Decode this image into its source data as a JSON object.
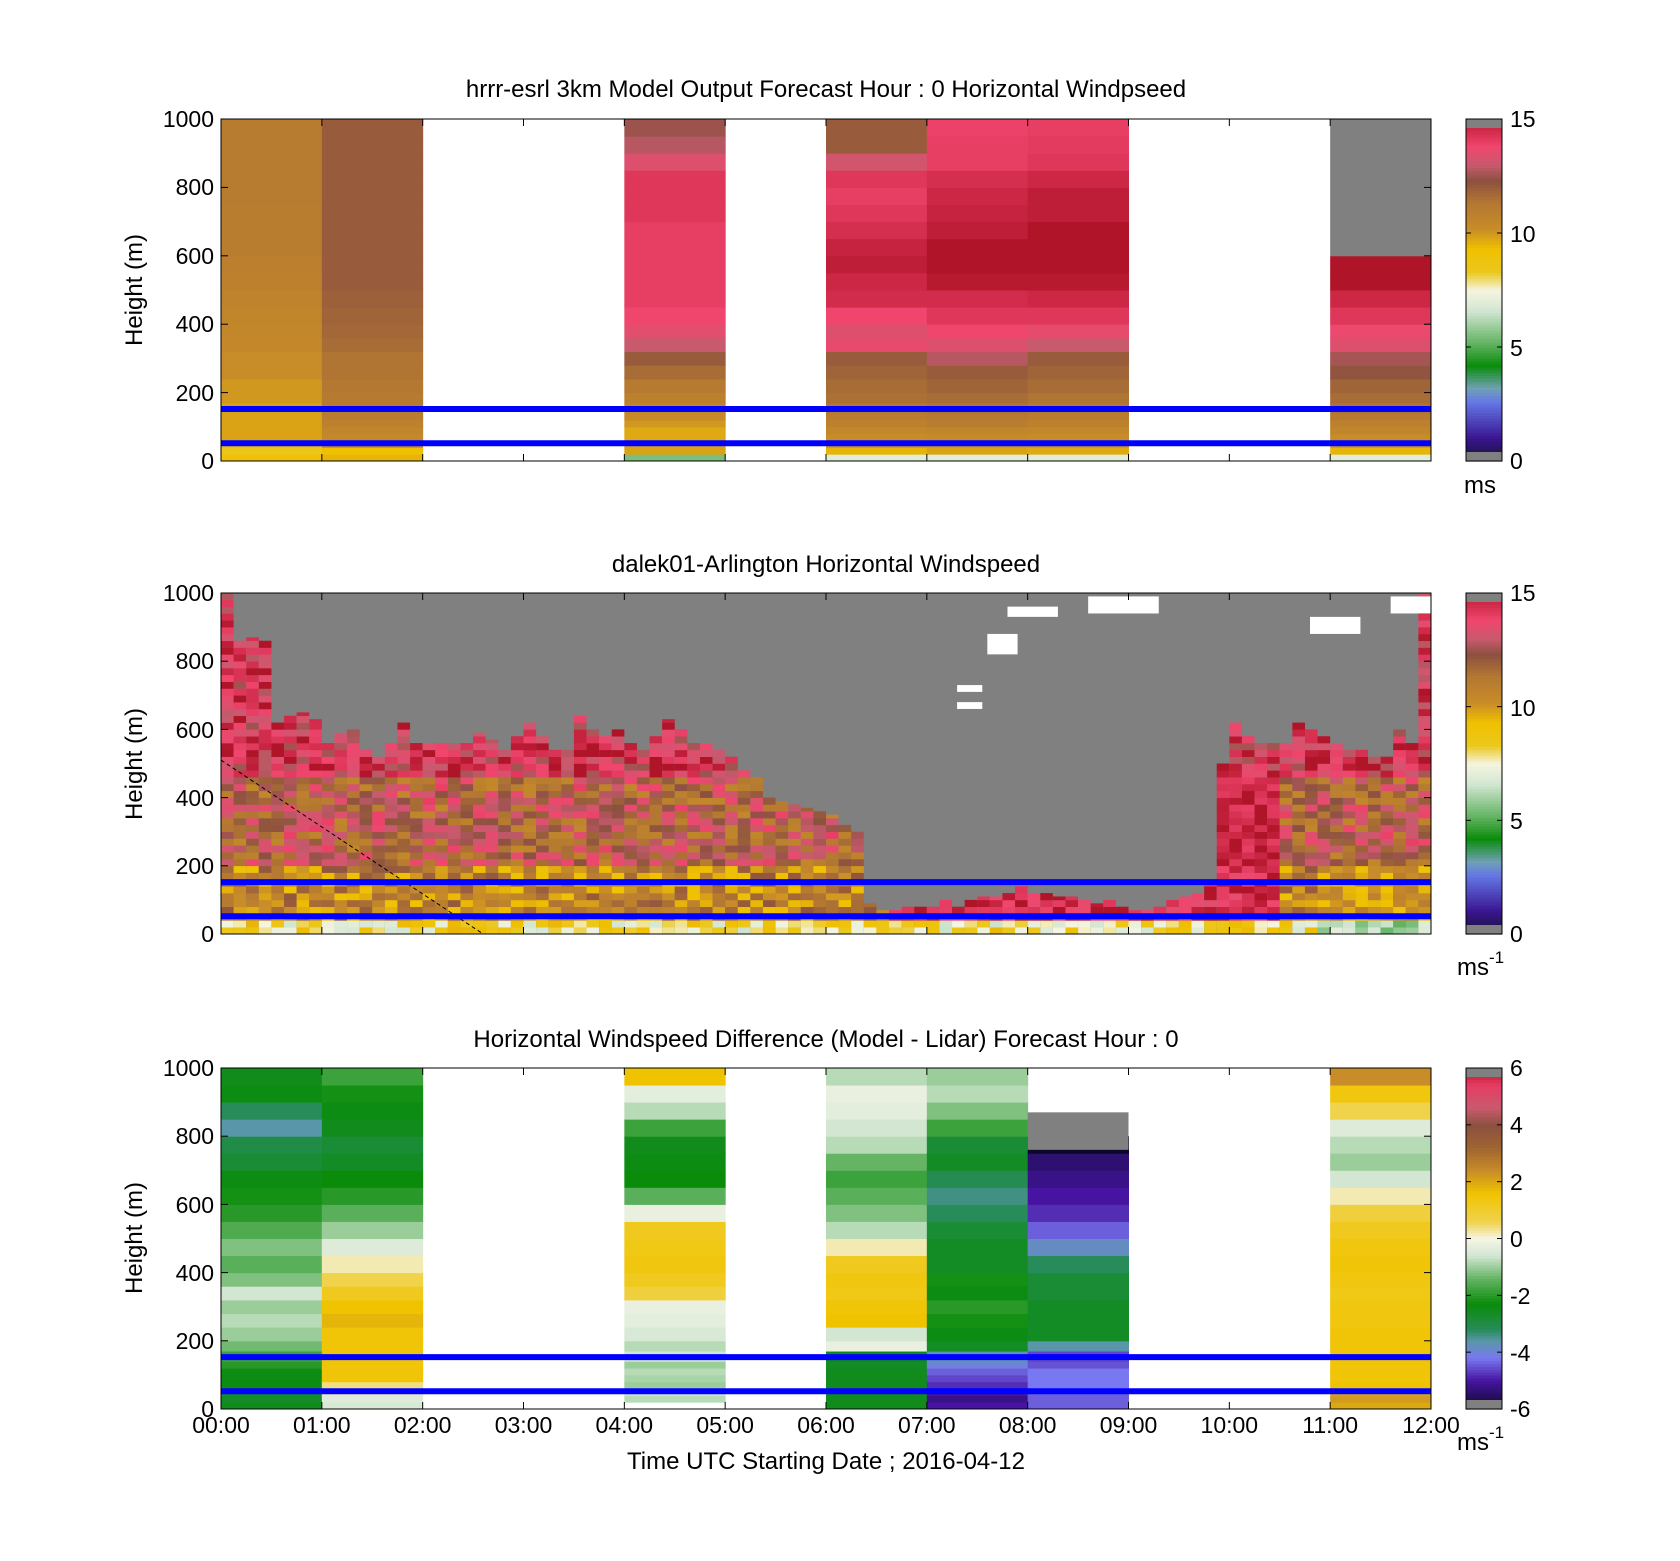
{
  "chart_data": [
    {
      "type": "heatmap",
      "title": "hrrr-esrl 3km Model Output   Forecast Hour : 0 Horizontal Windpseed",
      "ylabel": "Height (m)",
      "xlabel": "",
      "x_unit": "hours UTC",
      "ylim": [
        0,
        1000
      ],
      "yticks": [
        "0",
        "200",
        "400",
        "600",
        "800",
        "1000"
      ],
      "colorbar": {
        "min": 0,
        "max": 15,
        "ticks": [
          "0",
          "5",
          "10",
          "15"
        ],
        "unit_label": "ms",
        "unit_exp": ""
      },
      "reference_lines_m": [
        52,
        152
      ],
      "height_bins_m": [
        0,
        20,
        40,
        60,
        80,
        100,
        120,
        140,
        170,
        200,
        240,
        280,
        320,
        360,
        400,
        450,
        500,
        550,
        600,
        650,
        700,
        750,
        800,
        850,
        900,
        950,
        1000
      ],
      "columns": [
        {
          "t0": 0,
          "t1": 1,
          "values": [
            9,
            8.5,
            9.3,
            9.8,
            9.8,
            9.8,
            9.8,
            9.8,
            10,
            10,
            10.2,
            10.2,
            10.4,
            10.5,
            10.6,
            10.7,
            10.8,
            10.9,
            11,
            11,
            11,
            11.1,
            11.1,
            11.1,
            11.1,
            11.1
          ]
        },
        {
          "t0": 1,
          "t1": 2,
          "values": [
            9.5,
            9.3,
            10.2,
            10.4,
            10.6,
            10.8,
            11,
            11.1,
            11.2,
            11.3,
            11.4,
            11.4,
            11.6,
            11.7,
            11.8,
            11.9,
            12,
            12,
            12,
            12,
            12,
            12,
            12,
            12,
            12,
            12
          ]
        },
        {
          "t0": 4,
          "t1": 5,
          "values": [
            5.5,
            9.8,
            9.8,
            9.7,
            9.7,
            10,
            10.3,
            10.5,
            10.8,
            11.2,
            11.6,
            12,
            13,
            13.5,
            13.8,
            14,
            14,
            14,
            14,
            14,
            14.2,
            14.2,
            14.2,
            13.4,
            12.8,
            12.5
          ]
        },
        {
          "t0": 6,
          "t1": 7,
          "values": [
            7,
            9.5,
            10,
            10.2,
            10.5,
            10.8,
            11,
            11.3,
            11.5,
            11.6,
            11.8,
            12,
            13.6,
            13.4,
            13.8,
            14.5,
            14.6,
            14.8,
            14.7,
            14.4,
            14.2,
            14,
            14.2,
            13.2,
            12,
            12
          ]
        },
        {
          "t0": 7,
          "t1": 8,
          "values": [
            7,
            9.8,
            10,
            10.3,
            10.6,
            11,
            11.2,
            11.4,
            11.6,
            11.8,
            12,
            12.8,
            13.4,
            13.8,
            14.2,
            14.5,
            14.9,
            15,
            15,
            14.8,
            14.7,
            14.6,
            14.4,
            14,
            14,
            13.9
          ]
        },
        {
          "t0": 8,
          "t1": 9,
          "values": [
            7,
            9.7,
            10,
            10.2,
            10.5,
            10.8,
            11,
            11.2,
            11.4,
            11.6,
            11.8,
            12,
            13,
            13.6,
            14.2,
            14.6,
            14.9,
            15,
            15,
            15,
            14.8,
            14.8,
            14.6,
            14.2,
            14.1,
            14
          ]
        },
        {
          "t0": 11,
          "t1": 12,
          "values": [
            7,
            9.5,
            10,
            10.2,
            10.6,
            10.8,
            11.2,
            11.4,
            11.6,
            11.8,
            12.2,
            12.6,
            13.4,
            13.7,
            14.2,
            14.6,
            15,
            15,
            15.5,
            15.5,
            15.5,
            15.5,
            15.5,
            15.5,
            15.5,
            15.5
          ]
        }
      ]
    },
    {
      "type": "heatmap",
      "title": "dalek01-Arlington  Horizontal Windspeed",
      "ylabel": "Height (m)",
      "xlabel": "",
      "x_unit": "hours UTC",
      "ylim": [
        0,
        1000
      ],
      "yticks": [
        "0",
        "200",
        "400",
        "600",
        "800",
        "1000"
      ],
      "colorbar": {
        "min": 0,
        "max": 15,
        "ticks": [
          "0",
          "5",
          "10",
          "15"
        ],
        "unit_label": "ms",
        "unit_exp": "-1"
      },
      "reference_lines_m": [
        52,
        152
      ],
      "dashed_line": {
        "x": [
          0,
          2.6
        ],
        "y": [
          510,
          0
        ]
      },
      "missing_above_m": [
        1000,
        860,
        870,
        860,
        620,
        640,
        650,
        630,
        560,
        590,
        600,
        540,
        520,
        560,
        620,
        560,
        560,
        560,
        560,
        560,
        590,
        570,
        540,
        580,
        620,
        580,
        540,
        540,
        640,
        600,
        580,
        600,
        560,
        540,
        580,
        630,
        600,
        560,
        560,
        540,
        520,
        480,
        460,
        400,
        390,
        380,
        370,
        360,
        350,
        320,
        300,
        90,
        70,
        70,
        80,
        80,
        80,
        100,
        80,
        100,
        110,
        110,
        120,
        140,
        120,
        120,
        110,
        110,
        100,
        90,
        100,
        80,
        70,
        70,
        80,
        100,
        110,
        120,
        160,
        500,
        620,
        580,
        560,
        560,
        560,
        620,
        600,
        580,
        560,
        540,
        540,
        520,
        520,
        600,
        560,
        1000
      ]
    },
    {
      "type": "heatmap",
      "title": "Horizontal Windspeed Difference (Model - Lidar) Forecast Hour : 0",
      "ylabel": "Height (m)",
      "xlabel": "Time UTC  Starting Date ; 2016-04-12",
      "x_unit": "hours UTC",
      "xticks": [
        "00:00",
        "01:00",
        "02:00",
        "03:00",
        "04:00",
        "05:00",
        "06:00",
        "07:00",
        "08:00",
        "09:00",
        "10:00",
        "11:00",
        "12:00"
      ],
      "ylim": [
        0,
        1000
      ],
      "yticks": [
        "0",
        "200",
        "400",
        "600",
        "800",
        "1000"
      ],
      "colorbar": {
        "min": -6,
        "max": 6,
        "ticks": [
          "-6",
          "-4",
          "-2",
          "0",
          "2",
          "4",
          "6"
        ],
        "unit_label": "ms",
        "unit_exp": "-1"
      },
      "reference_lines_m": [
        52,
        152
      ],
      "height_bins_m": [
        0,
        20,
        40,
        60,
        80,
        100,
        120,
        140,
        170,
        200,
        240,
        280,
        320,
        360,
        400,
        450,
        500,
        550,
        600,
        650,
        700,
        750,
        800,
        850,
        900,
        950,
        1000
      ],
      "columns": [
        {
          "t0": 0,
          "t1": 1,
          "values": [
            -2.5,
            -2.6,
            -2.6,
            -2.4,
            -2.4,
            -2.4,
            -2,
            -1.8,
            -1.3,
            -1,
            -0.8,
            -1,
            -0.6,
            -1.2,
            -1.5,
            -1.2,
            -1.6,
            -2,
            -2.2,
            -2.4,
            -2.8,
            -3,
            -3.6,
            -3.2,
            -2.4,
            -2.5
          ]
        },
        {
          "t0": 1,
          "t1": 2,
          "values": [
            -0.5,
            -0.4,
            0.2,
            0.4,
            1.5,
            1.5,
            1.5,
            1.5,
            1.5,
            1.5,
            1.8,
            1.6,
            1.2,
            0.6,
            0.2,
            -0.4,
            -1,
            -1.5,
            -2,
            -2.3,
            -2.6,
            -2.8,
            -2.5,
            -2.4,
            -2.2,
            -1.8
          ]
        },
        {
          "t0": 4,
          "t1": 5,
          "values": [
            null,
            -0.8,
            -0.6,
            -1,
            -0.9,
            -0.8,
            -1,
            -0.6,
            -0.8,
            -0.5,
            -0.3,
            -0.2,
            0.8,
            1.2,
            1.4,
            1.3,
            1.2,
            -0.2,
            -1.5,
            -2.3,
            -2.4,
            -2.5,
            -1.8,
            -0.8,
            -0.3,
            1.6
          ]
        },
        {
          "t0": 6,
          "t1": 7,
          "values": [
            -2.5,
            -2.5,
            -2.5,
            -2.5,
            -2.5,
            -2.5,
            -2.6,
            -2.4,
            -0.2,
            -0.6,
            1.6,
            1.5,
            1.3,
            1.4,
            1.2,
            0.2,
            -0.8,
            -1.2,
            -1.5,
            -1.8,
            -1.4,
            -0.8,
            -0.6,
            -0.3,
            -0.2,
            -0.8
          ]
        },
        {
          "t0": 7,
          "t1": 8,
          "values": [
            -5,
            -5.2,
            -5,
            -4.8,
            -4.6,
            -4.4,
            -4,
            -3.6,
            -2.6,
            -2.4,
            -2.2,
            -2,
            -2.4,
            -2.2,
            -2.6,
            -2.6,
            -2.8,
            -3.2,
            -3.4,
            -3.1,
            -2.6,
            -2.8,
            -1.8,
            -1.2,
            -0.8,
            -1
          ]
        },
        {
          "t0": 8,
          "t1": 9,
          "values": [
            -4.4,
            -4.4,
            -4.4,
            -4.2,
            -4.2,
            -4.2,
            -4.5,
            -4.6,
            -3.6,
            -2.6,
            -2.6,
            -2.6,
            -2.8,
            -2.8,
            -3.2,
            -3.8,
            -4.4,
            -4.8,
            -5,
            -5.2,
            -5.4,
            -6,
            null,
            null,
            null,
            null
          ]
        },
        {
          "t0": 11,
          "t1": 12,
          "values": [
            2,
            2.2,
            2,
            1.6,
            1.5,
            1.5,
            1.5,
            1.5,
            1.5,
            1.5,
            1.4,
            1.4,
            1.3,
            1.4,
            1.5,
            1.4,
            1.2,
            0.8,
            0.2,
            -0.6,
            -1,
            -0.8,
            -0.4,
            0.6,
            1.4,
            2.4
          ]
        }
      ]
    }
  ]
}
